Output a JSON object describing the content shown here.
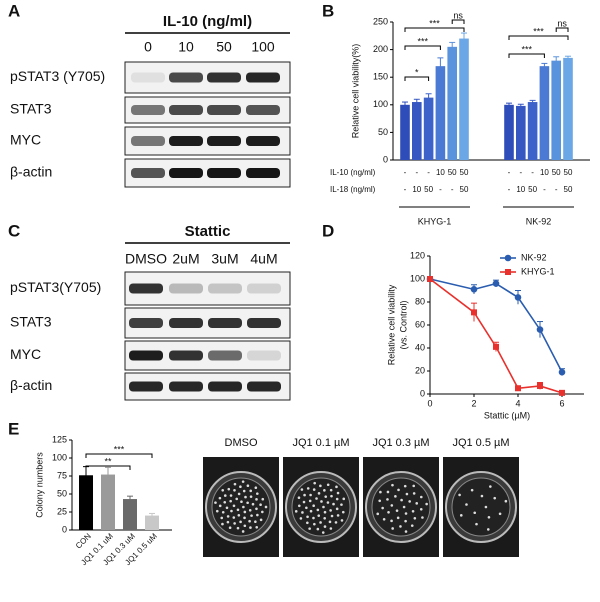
{
  "panel_labels": [
    "A",
    "B",
    "C",
    "D",
    "E"
  ],
  "blot_a": {
    "title": "IL-10 (ng/ml)",
    "lanes": [
      "0",
      "10",
      "50",
      "100"
    ],
    "rows": [
      "pSTAT3 (Y705)",
      "STAT3",
      "MYC",
      "β-actin"
    ]
  },
  "blot_c": {
    "title": "Stattic",
    "lanes": [
      "DMSO",
      "2uM",
      "3uM",
      "4uM"
    ],
    "rows": [
      "pSTAT3(Y705)",
      "STAT3",
      "MYC",
      "β-actin"
    ]
  },
  "colony_images": [
    "DMSO",
    "JQ1 0.1 µM",
    "JQ1 0.3 µM",
    "JQ1 0.5 µM"
  ],
  "chart_data": [
    {
      "type": "bar",
      "y_label": "Relative cell viability(%)",
      "values": [
        100,
        105,
        113,
        170,
        205,
        220,
        100,
        98,
        105,
        170,
        180,
        185
      ],
      "errors": [
        5,
        5,
        7,
        15,
        8,
        10,
        3,
        3,
        3,
        5,
        7,
        3
      ],
      "colors": [
        "#2f4db8",
        "#3657c2",
        "#3d62c9",
        "#4a7ad3",
        "#5a93dd",
        "#6ba7e6",
        "#2f4db8",
        "#3657c2",
        "#3d62c9",
        "#4a7ad3",
        "#5a93dd",
        "#6ba7e6"
      ],
      "condition_rows": [
        {
          "label": "IL-10 (ng/ml)",
          "values": [
            "-",
            "-",
            "-",
            "10",
            "50",
            "50",
            "-",
            "-",
            "-",
            "10",
            "50",
            "50"
          ]
        },
        {
          "label": "IL-18 (ng/ml)",
          "values": [
            "-",
            "10",
            "50",
            "-",
            "-",
            "50",
            "-",
            "10",
            "50",
            "-",
            "-",
            "50"
          ]
        }
      ],
      "groups": [
        "KHYG-1",
        "NK-92"
      ],
      "annotations": [
        "*",
        "***",
        "***",
        "ns",
        "***",
        "***",
        "ns"
      ],
      "ylim": [
        0,
        250
      ],
      "yticks": [
        0,
        50,
        100,
        150,
        200,
        250
      ]
    },
    {
      "type": "line",
      "x_label": "Stattic (µM)",
      "y_label": [
        "Relative cell viability",
        "(vs. Control)"
      ],
      "x": [
        0,
        2,
        3,
        4,
        5,
        6
      ],
      "series": [
        {
          "name": "NK-92",
          "color": "#2a5db0",
          "marker": "circle",
          "values": [
            100,
            91,
            96,
            84,
            56,
            19
          ],
          "errors": [
            0,
            4,
            3,
            6,
            7,
            3
          ]
        },
        {
          "name": "KHYG-1",
          "color": "#e8302c",
          "marker": "square",
          "values": [
            100,
            71,
            41,
            5,
            7,
            1
          ],
          "errors": [
            0,
            8,
            4,
            2,
            3,
            1
          ]
        }
      ],
      "xlim": [
        0,
        7
      ],
      "xticks": [
        0,
        2,
        4,
        6
      ],
      "ylim": [
        0,
        120
      ],
      "yticks": [
        0,
        20,
        40,
        60,
        80,
        100,
        120
      ],
      "legend": "top-right"
    },
    {
      "type": "bar",
      "y_label": "Colony numbers",
      "categories": [
        "CON",
        "JQ1 0.1 uM",
        "JQ1 0.3 uM",
        "JQ1 0.5 uM"
      ],
      "values": [
        76,
        77,
        43,
        20
      ],
      "errors": [
        12,
        10,
        4,
        3
      ],
      "colors": [
        "#000000",
        "#9a9a9a",
        "#6a6a6a",
        "#c8c8c8"
      ],
      "annotations": [
        "**",
        "***"
      ],
      "ylim": [
        0,
        125
      ],
      "yticks": [
        0,
        25,
        50,
        75,
        100,
        125
      ]
    }
  ]
}
